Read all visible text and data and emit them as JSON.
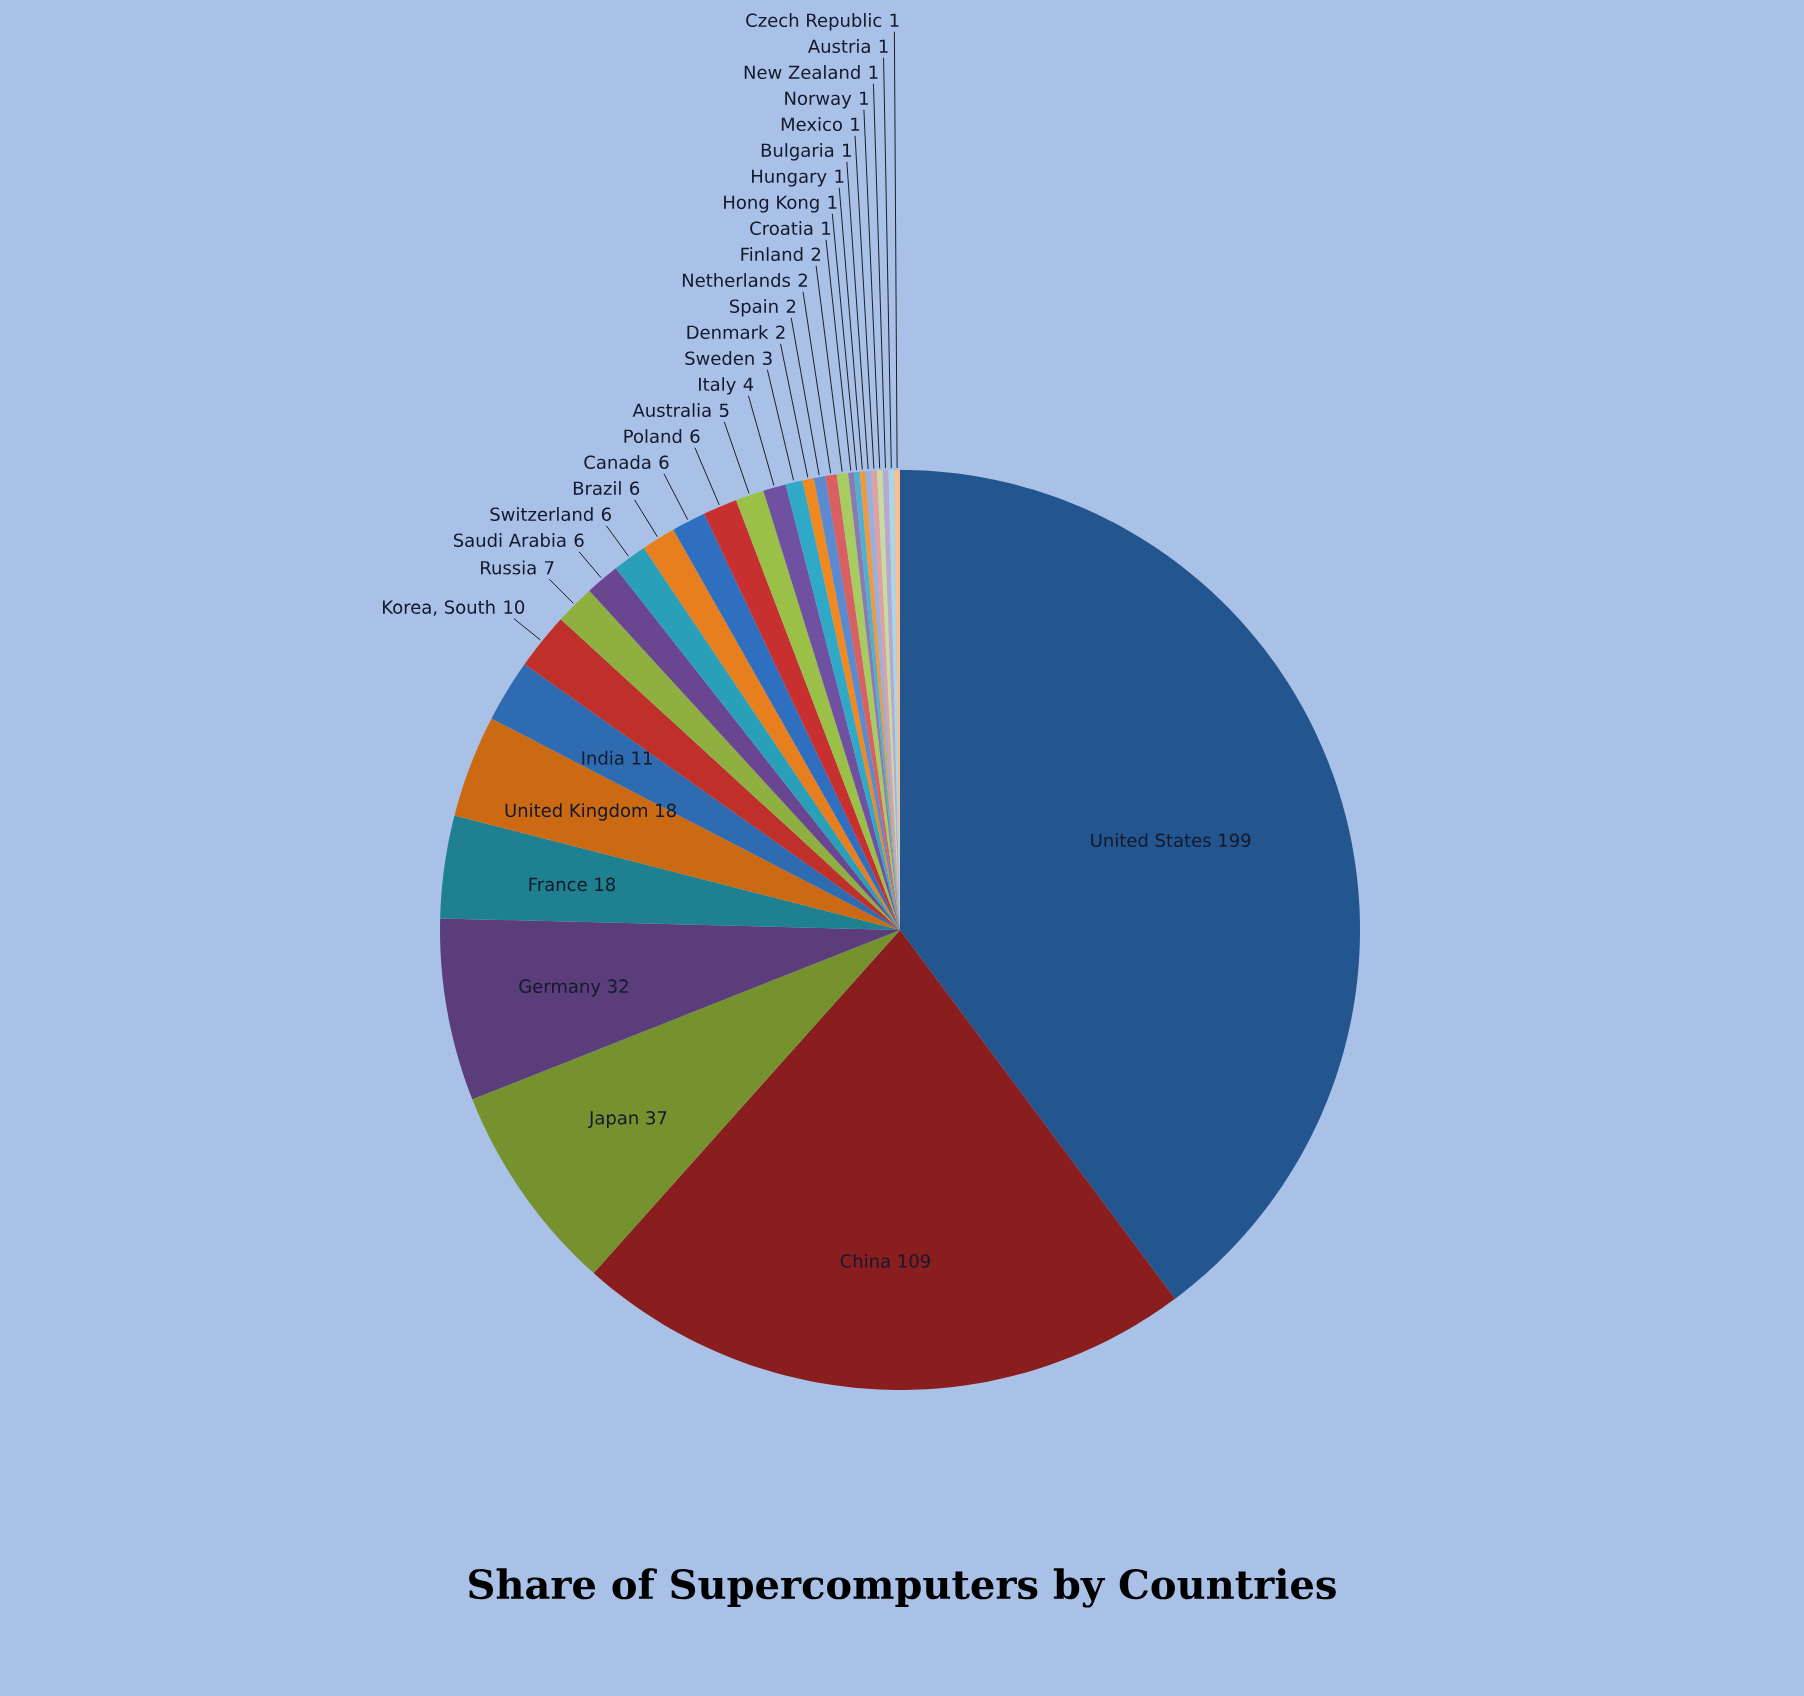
{
  "chart_data": {
    "type": "pie",
    "title": "Share of Supercomputers by Countries",
    "categories": [
      "United States",
      "China",
      "Japan",
      "Germany",
      "France",
      "United Kingdom",
      "India",
      "Korea, South",
      "Russia",
      "Saudi Arabia",
      "Switzerland",
      "Brazil",
      "Canada",
      "Poland",
      "Australia",
      "Italy",
      "Sweden",
      "Denmark",
      "Spain",
      "Netherlands",
      "Finland",
      "Croatia",
      "Hong Kong",
      "Hungary",
      "Bulgaria",
      "Mexico",
      "Norway",
      "New Zealand",
      "Austria",
      "Czech Republic"
    ],
    "values": [
      199,
      109,
      37,
      32,
      18,
      18,
      11,
      10,
      7,
      6,
      6,
      6,
      6,
      6,
      5,
      4,
      3,
      2,
      2,
      2,
      2,
      1,
      1,
      1,
      1,
      1,
      1,
      1,
      1,
      1
    ],
    "colors": [
      "#23558f",
      "#8a1e1e",
      "#76922e",
      "#5a3d7a",
      "#1f8090",
      "#cc6a14",
      "#2e6bb0",
      "#c0302a",
      "#8fb040",
      "#6a4690",
      "#2aa0b8",
      "#e87f1e",
      "#2f6fc0",
      "#c83030",
      "#9ac048",
      "#7050a0",
      "#30a8c8",
      "#f08a20",
      "#5a8ad0",
      "#d86060",
      "#a8cc60",
      "#8a7ab0",
      "#50b0d0",
      "#f09a40",
      "#98b0e0",
      "#e0a0a0",
      "#c8dca0",
      "#b8a8d0",
      "#a8d8e8",
      "#f8c090"
    ],
    "data_labels": true
  }
}
